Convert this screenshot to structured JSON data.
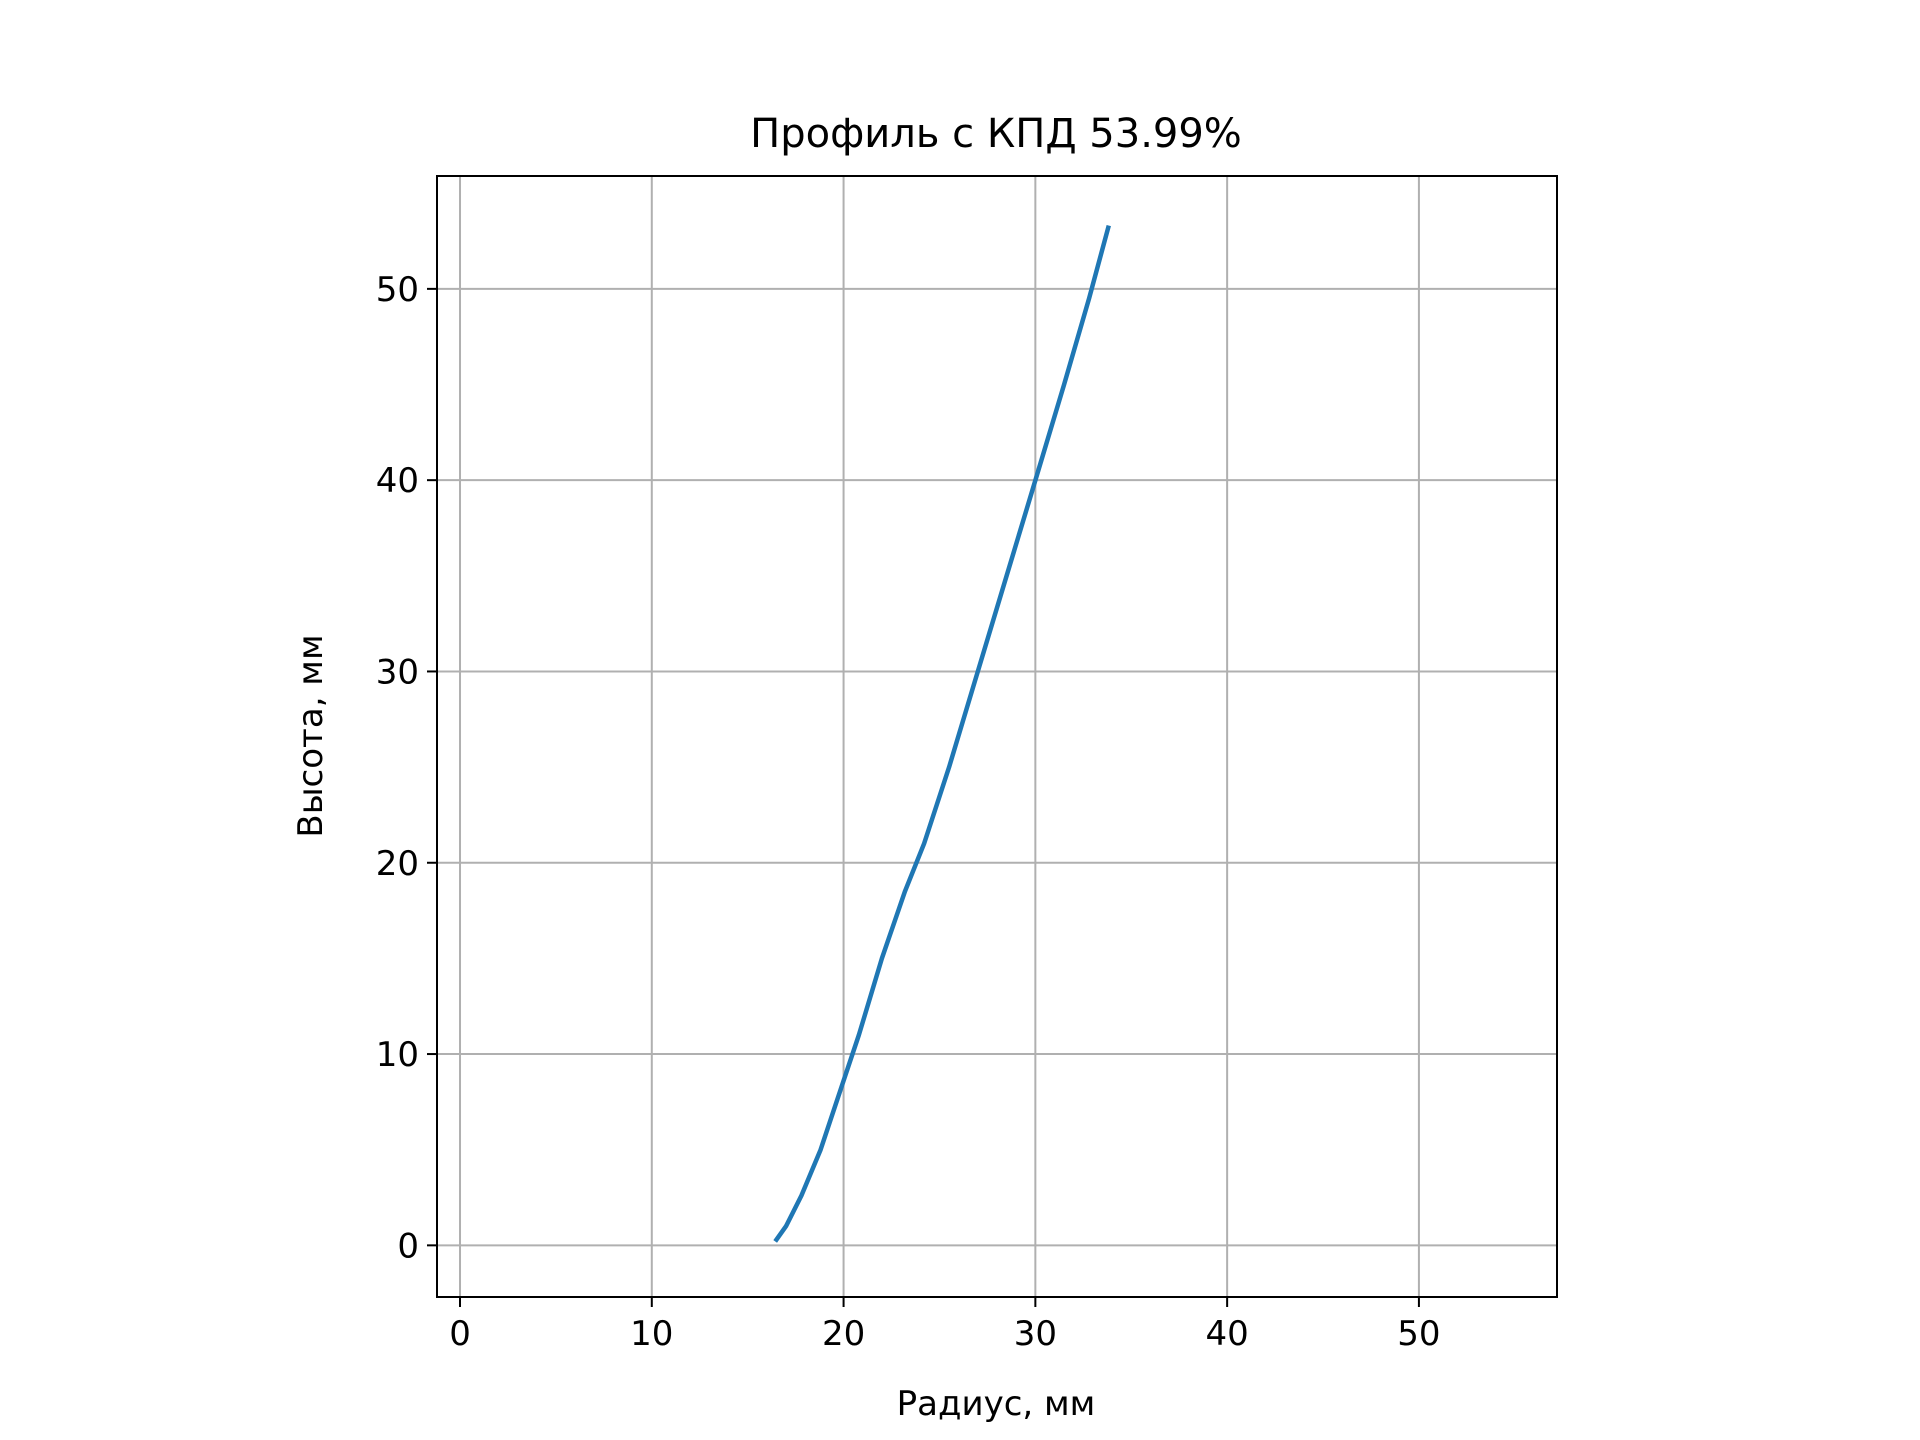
{
  "chart_data": {
    "type": "line",
    "title": "Профиль с КПД 53.99%",
    "xlabel": "Радиус, мм",
    "ylabel": "Высота, мм",
    "xlim": [
      -1.2,
      57.2
    ],
    "ylim": [
      -2.7,
      55.9
    ],
    "xticks": [
      0,
      10,
      20,
      30,
      40,
      50
    ],
    "yticks": [
      0,
      10,
      20,
      30,
      40,
      50
    ],
    "xtick_labels": [
      "0",
      "10",
      "20",
      "30",
      "40",
      "50"
    ],
    "ytick_labels": [
      "0",
      "10",
      "20",
      "30",
      "40",
      "50"
    ],
    "grid": true,
    "series": [
      {
        "color": "#1f77b4",
        "x": [
          16.5,
          17.0,
          17.8,
          18.8,
          19.8,
          20.8,
          22.0,
          23.2,
          24.2,
          25.5,
          27.0,
          28.5,
          30.0,
          31.5,
          32.8,
          33.8
        ],
        "y": [
          0.3,
          1.0,
          2.6,
          5.0,
          8.0,
          11.0,
          15.0,
          18.5,
          21.0,
          25.0,
          30.0,
          35.0,
          40.0,
          45.0,
          49.5,
          53.2
        ]
      }
    ],
    "colors": {
      "line": "#1f77b4",
      "grid": "#b0b0b0",
      "axes": "#000000"
    }
  }
}
